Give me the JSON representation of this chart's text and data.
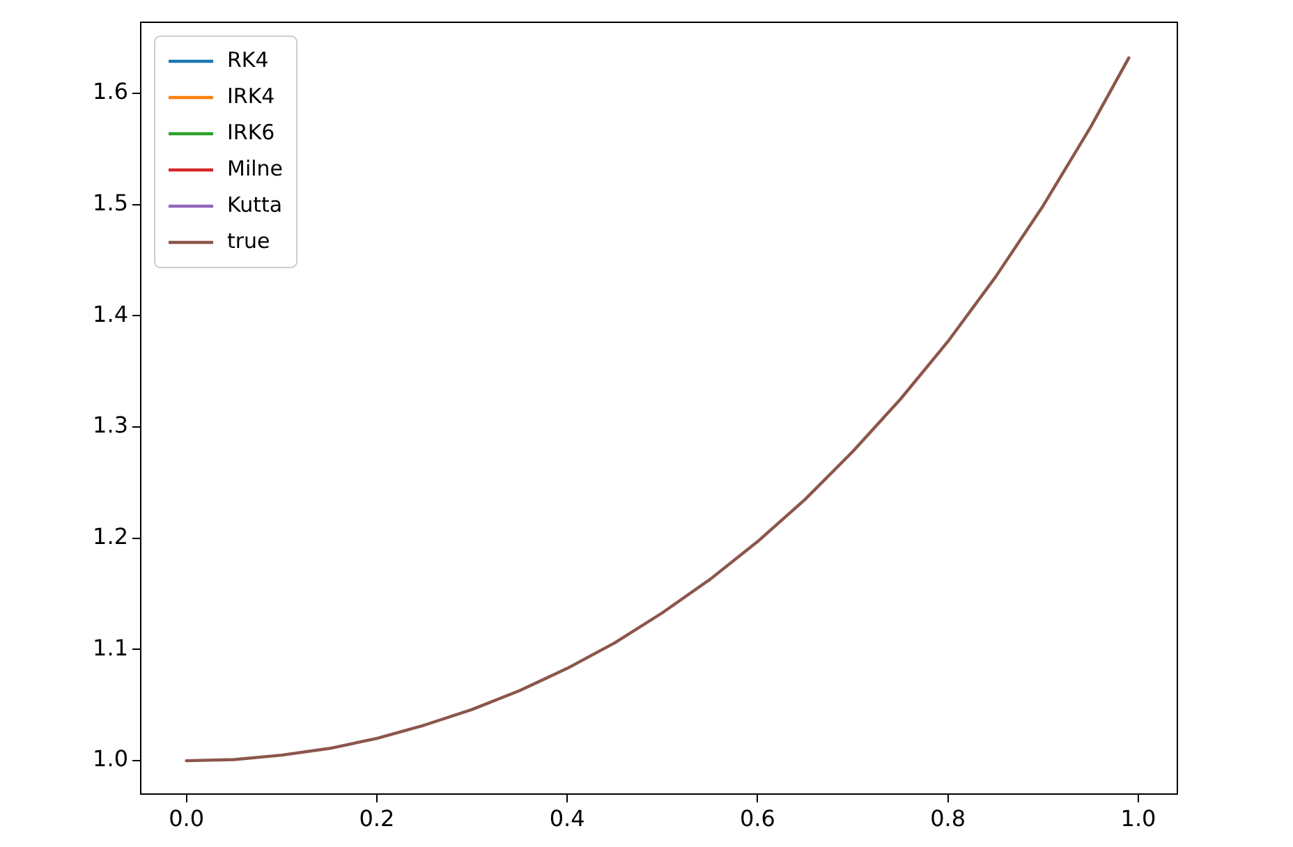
{
  "chart_data": {
    "type": "line",
    "x": [
      0,
      0.05,
      0.1,
      0.15,
      0.2,
      0.25,
      0.3,
      0.35,
      0.4,
      0.45,
      0.5,
      0.55,
      0.6,
      0.65,
      0.7,
      0.75,
      0.8,
      0.85,
      0.9,
      0.95,
      0.99
    ],
    "series": [
      {
        "name": "RK4",
        "color": "#1f77b4",
        "values": [
          null,
          null,
          null,
          null,
          null,
          null,
          null,
          null,
          null,
          null,
          null,
          null,
          null,
          null,
          null,
          null,
          null,
          null,
          null,
          null,
          null
        ]
      },
      {
        "name": "IRK4",
        "color": "#ff7f0e",
        "values": [
          null,
          null,
          null,
          null,
          null,
          null,
          null,
          null,
          null,
          null,
          null,
          null,
          null,
          null,
          null,
          null,
          null,
          null,
          null,
          null,
          null
        ]
      },
      {
        "name": "IRK6",
        "color": "#2ca02c",
        "values": [
          null,
          null,
          null,
          null,
          null,
          null,
          null,
          null,
          null,
          null,
          null,
          null,
          null,
          null,
          null,
          null,
          null,
          null,
          null,
          null,
          null
        ]
      },
      {
        "name": "Milne",
        "color": "#d62728",
        "values": [
          null,
          null,
          null,
          null,
          null,
          null,
          null,
          null,
          null,
          null,
          null,
          null,
          null,
          null,
          null,
          null,
          null,
          null,
          null,
          null,
          null
        ]
      },
      {
        "name": "Kutta",
        "color": "#9467bd",
        "values": [
          null,
          null,
          null,
          null,
          null,
          null,
          null,
          null,
          null,
          null,
          null,
          null,
          null,
          null,
          null,
          null,
          null,
          null,
          null,
          null,
          null
        ]
      },
      {
        "name": "true",
        "color": "#8c564b",
        "values": [
          1.0,
          1.001,
          1.005,
          1.011,
          1.02,
          1.032,
          1.046,
          1.063,
          1.083,
          1.106,
          1.133,
          1.163,
          1.197,
          1.235,
          1.278,
          1.325,
          1.377,
          1.435,
          1.499,
          1.57,
          1.632
        ]
      }
    ],
    "xlim": [
      -0.048,
      1.041
    ],
    "ylim": [
      0.97,
      1.664
    ],
    "xticks": [
      {
        "value": 0,
        "label": "0.0"
      },
      {
        "value": 0.2,
        "label": "0.2"
      },
      {
        "value": 0.4,
        "label": "0.4"
      },
      {
        "value": 0.6,
        "label": "0.6"
      },
      {
        "value": 0.8,
        "label": "0.8"
      },
      {
        "value": 1,
        "label": "1.0"
      }
    ],
    "yticks": [
      {
        "value": 1,
        "label": "1.0"
      },
      {
        "value": 1.1,
        "label": "1.1"
      },
      {
        "value": 1.2,
        "label": "1.2"
      },
      {
        "value": 1.3,
        "label": "1.3"
      },
      {
        "value": 1.4,
        "label": "1.4"
      },
      {
        "value": 1.5,
        "label": "1.5"
      },
      {
        "value": 1.6,
        "label": "1.6"
      }
    ],
    "grid": false,
    "legend": "top left",
    "marker": "none",
    "line_style": "solid"
  }
}
